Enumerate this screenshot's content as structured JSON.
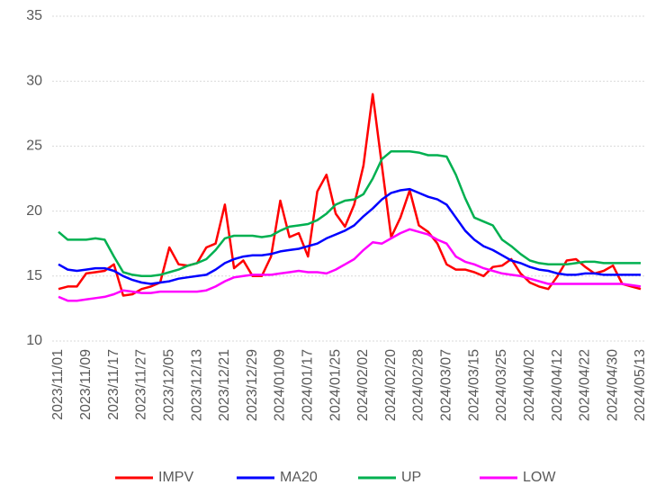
{
  "chart_data": {
    "type": "line",
    "categories": [
      "2023/11/01",
      null,
      null,
      "2023/11/09",
      null,
      null,
      "2023/11/17",
      null,
      null,
      "2023/11/27",
      null,
      null,
      "2023/12/05",
      null,
      null,
      "2023/12/13",
      null,
      null,
      "2023/12/21",
      null,
      null,
      "2023/12/29",
      null,
      null,
      "2024/01/09",
      null,
      null,
      "2024/01/17",
      null,
      null,
      "2024/01/25",
      null,
      null,
      "2024/02/02",
      null,
      null,
      "2024/02/20",
      null,
      null,
      "2024/02/28",
      null,
      null,
      "2024/03/07",
      null,
      null,
      "2024/03/15",
      null,
      null,
      "2024/03/25",
      null,
      null,
      "2024/04/02",
      null,
      null,
      "2024/04/12",
      null,
      null,
      "2024/04/22",
      null,
      null,
      "2024/04/30",
      null,
      null,
      "2024/05/13"
    ],
    "series": [
      {
        "name": "IMPV",
        "color": "#ff0000",
        "values": [
          14.0,
          14.2,
          14.2,
          15.2,
          15.3,
          15.4,
          15.9,
          13.5,
          13.6,
          14.0,
          14.2,
          14.5,
          17.2,
          15.9,
          15.8,
          16.0,
          17.2,
          17.5,
          20.5,
          15.6,
          16.2,
          15.0,
          15.0,
          16.5,
          20.8,
          18.0,
          18.3,
          16.5,
          21.5,
          22.8,
          19.8,
          18.8,
          20.5,
          23.5,
          29.0,
          23.5,
          18.0,
          19.5,
          21.6,
          18.9,
          18.4,
          17.5,
          15.9,
          15.5,
          15.5,
          15.3,
          15.0,
          15.7,
          15.8,
          16.3,
          15.2,
          14.5,
          14.2,
          14.0,
          15.0,
          16.2,
          16.3,
          15.7,
          15.2,
          15.4,
          15.8,
          14.4,
          14.2,
          14.0
        ]
      },
      {
        "name": "MA20",
        "color": "#0000ff",
        "values": [
          15.9,
          15.5,
          15.4,
          15.5,
          15.6,
          15.6,
          15.4,
          15.0,
          14.7,
          14.5,
          14.4,
          14.5,
          14.6,
          14.8,
          14.9,
          15.0,
          15.1,
          15.5,
          16.0,
          16.3,
          16.5,
          16.6,
          16.6,
          16.7,
          16.9,
          17.0,
          17.1,
          17.3,
          17.5,
          17.9,
          18.2,
          18.5,
          18.9,
          19.6,
          20.2,
          20.9,
          21.4,
          21.6,
          21.7,
          21.4,
          21.1,
          20.9,
          20.5,
          19.5,
          18.5,
          17.8,
          17.3,
          17.0,
          16.6,
          16.2,
          16.0,
          15.7,
          15.5,
          15.4,
          15.2,
          15.1,
          15.1,
          15.2,
          15.2,
          15.1,
          15.1,
          15.1,
          15.1,
          15.1
        ]
      },
      {
        "name": "UP",
        "color": "#00b050",
        "values": [
          18.4,
          17.8,
          17.8,
          17.8,
          17.9,
          17.8,
          16.5,
          15.3,
          15.1,
          15.0,
          15.0,
          15.1,
          15.3,
          15.5,
          15.8,
          16.0,
          16.3,
          17.0,
          17.9,
          18.1,
          18.1,
          18.1,
          18.0,
          18.1,
          18.5,
          18.8,
          18.9,
          19.0,
          19.3,
          19.8,
          20.5,
          20.8,
          20.9,
          21.3,
          22.5,
          24.0,
          24.6,
          24.6,
          24.6,
          24.5,
          24.3,
          24.3,
          24.2,
          22.8,
          21.0,
          19.5,
          19.2,
          18.9,
          17.8,
          17.3,
          16.7,
          16.2,
          16.0,
          15.9,
          15.9,
          15.9,
          16.0,
          16.1,
          16.1,
          16.0,
          16.0,
          16.0,
          16.0,
          16.0
        ]
      },
      {
        "name": "LOW",
        "color": "#ff00ff",
        "values": [
          13.4,
          13.1,
          13.1,
          13.2,
          13.3,
          13.4,
          13.6,
          13.9,
          13.8,
          13.7,
          13.7,
          13.8,
          13.8,
          13.8,
          13.8,
          13.8,
          13.9,
          14.2,
          14.6,
          14.9,
          15.0,
          15.1,
          15.1,
          15.1,
          15.2,
          15.3,
          15.4,
          15.3,
          15.3,
          15.2,
          15.5,
          15.9,
          16.3,
          17.0,
          17.6,
          17.5,
          17.9,
          18.3,
          18.6,
          18.4,
          18.2,
          17.8,
          17.5,
          16.5,
          16.1,
          15.9,
          15.6,
          15.4,
          15.2,
          15.1,
          15.0,
          14.8,
          14.6,
          14.4,
          14.4,
          14.4,
          14.4,
          14.4,
          14.4,
          14.4,
          14.4,
          14.4,
          14.3,
          14.2
        ]
      }
    ],
    "ylim": [
      10,
      35
    ],
    "yticks": [
      10,
      15,
      20,
      25,
      30,
      35
    ],
    "grid": true,
    "legend": "bottom"
  }
}
